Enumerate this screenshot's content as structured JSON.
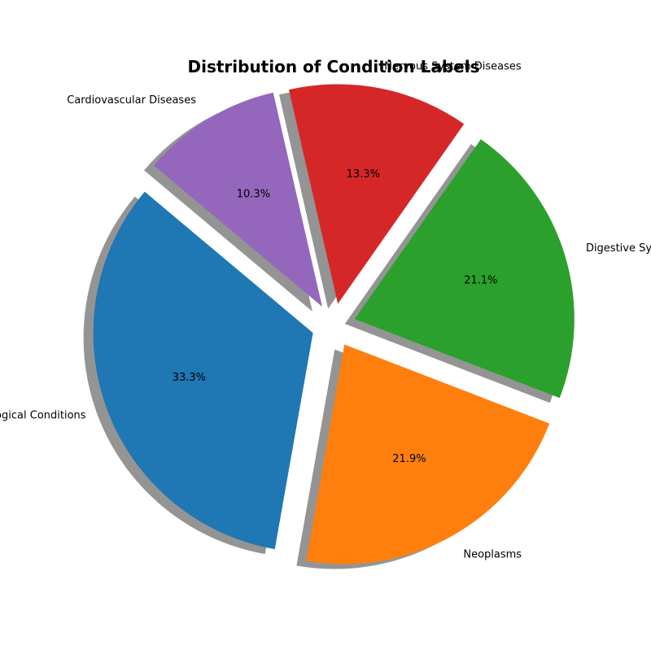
{
  "chart_data": {
    "type": "pie",
    "title": "Distribution of Condition Labels",
    "start_angle_deg": 140,
    "direction": "counterclockwise",
    "exploded": true,
    "shadow": true,
    "slices": [
      {
        "label": "Pathological Conditions",
        "value": 33.3,
        "pct_label": "33.3%",
        "color": "#1f77b4"
      },
      {
        "label": "Neoplasms",
        "value": 21.9,
        "pct_label": "21.9%",
        "color": "#ff7f0e"
      },
      {
        "label": "Digestive System Diseases",
        "value": 21.1,
        "pct_label": "21.1%",
        "color": "#2ca02c"
      },
      {
        "label": "Nervous System Diseases",
        "value": 13.3,
        "pct_label": "13.3%",
        "color": "#d62728"
      },
      {
        "label": "Cardiovascular Diseases",
        "value": 10.3,
        "pct_label": "10.3%",
        "color": "#9467bd"
      }
    ]
  }
}
